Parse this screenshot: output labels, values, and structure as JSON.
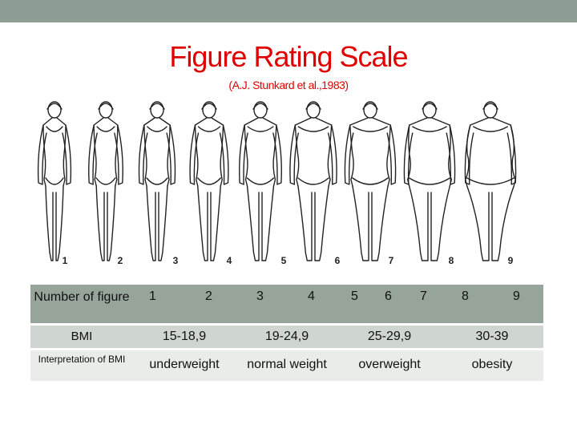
{
  "title": "Figure Rating Scale",
  "subtitle": "(A.J. Stunkard et al.,1983)",
  "figure_numbers": [
    "1",
    "2",
    "3",
    "4",
    "5",
    "6",
    "7",
    "8",
    "9"
  ],
  "table": {
    "row1_label": "Number of figure",
    "row1_values": [
      "1",
      "2",
      "3",
      "4",
      "5",
      "6",
      "7",
      "8",
      "9"
    ],
    "row2_label": "BMI",
    "row2_values": [
      "15-18,9",
      "19-24,9",
      "25-29,9",
      "30-39"
    ],
    "row3_label": "Interpretation of BMI",
    "row3_values": [
      "underweight",
      "normal weight",
      "overweight",
      "obesity"
    ]
  },
  "colors": {
    "title": "#e00000",
    "topbar": "#8f9e94",
    "row1": "#96a49a",
    "row2": "#cfd5d1",
    "row3": "#e9ece9"
  }
}
